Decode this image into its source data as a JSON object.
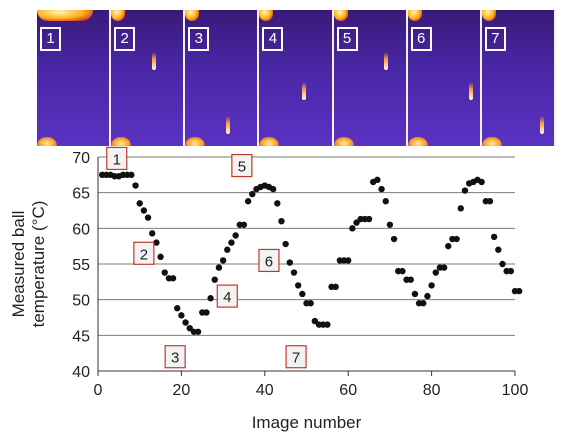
{
  "frames": [
    {
      "label": "1",
      "ball": "none"
    },
    {
      "label": "2",
      "ball": "upper"
    },
    {
      "label": "3",
      "ball": "lower"
    },
    {
      "label": "4",
      "ball": "middle"
    },
    {
      "label": "5",
      "ball": "upper"
    },
    {
      "label": "6",
      "ball": "middle"
    },
    {
      "label": "7",
      "ball": "lower"
    }
  ],
  "chart_data": {
    "type": "scatter",
    "xlabel": "Image number",
    "ylabel": [
      "Measured ball",
      "temperature (°C)"
    ],
    "xlim": [
      0,
      100
    ],
    "ylim": [
      40,
      70
    ],
    "xticks": [
      0,
      20,
      40,
      60,
      80,
      100
    ],
    "yticks": [
      40,
      45,
      50,
      55,
      60,
      65,
      70
    ],
    "grid": "horizontal",
    "series": [
      {
        "color": "#111111",
        "points": [
          [
            1,
            67.5
          ],
          [
            2,
            67.5
          ],
          [
            3,
            67.5
          ],
          [
            4,
            67.3
          ],
          [
            5,
            67.3
          ],
          [
            6,
            67.5
          ],
          [
            7,
            67.5
          ],
          [
            8,
            67.5
          ],
          [
            9,
            66
          ],
          [
            10,
            63.5
          ],
          [
            11,
            62.5
          ],
          [
            12,
            61.5
          ],
          [
            13,
            59.3
          ],
          [
            14,
            58
          ],
          [
            15,
            56
          ],
          [
            16,
            53.8
          ],
          [
            17,
            53
          ],
          [
            18,
            53
          ],
          [
            19,
            48.8
          ],
          [
            20,
            47.8
          ],
          [
            21,
            46.8
          ],
          [
            22,
            46
          ],
          [
            23,
            45.5
          ],
          [
            24,
            45.5
          ],
          [
            25,
            48.2
          ],
          [
            26,
            48.2
          ],
          [
            27,
            50.2
          ],
          [
            28,
            52.8
          ],
          [
            29,
            54.5
          ],
          [
            30,
            55.5
          ],
          [
            31,
            57
          ],
          [
            32,
            58
          ],
          [
            33,
            59
          ],
          [
            34,
            60.5
          ],
          [
            35,
            60.5
          ],
          [
            36,
            63.8
          ],
          [
            37,
            64.8
          ],
          [
            38,
            65.5
          ],
          [
            39,
            65.8
          ],
          [
            40,
            66
          ],
          [
            41,
            65.8
          ],
          [
            42,
            65.5
          ],
          [
            43,
            63.5
          ],
          [
            44,
            61
          ],
          [
            45,
            57.8
          ],
          [
            46,
            55.2
          ],
          [
            47,
            53.8
          ],
          [
            48,
            52
          ],
          [
            49,
            50.8
          ],
          [
            50,
            49.5
          ],
          [
            51,
            49.5
          ],
          [
            52,
            47
          ],
          [
            53,
            46.5
          ],
          [
            54,
            46.5
          ],
          [
            55,
            46.5
          ],
          [
            56,
            51.8
          ],
          [
            57,
            51.8
          ],
          [
            58,
            55.5
          ],
          [
            59,
            55.5
          ],
          [
            60,
            55.5
          ],
          [
            61,
            60
          ],
          [
            62,
            60.8
          ],
          [
            63,
            61.3
          ],
          [
            64,
            61.3
          ],
          [
            65,
            61.3
          ],
          [
            66,
            66.5
          ],
          [
            67,
            66.8
          ],
          [
            68,
            65.5
          ],
          [
            69,
            63.8
          ],
          [
            70,
            60.5
          ],
          [
            71,
            58.5
          ],
          [
            72,
            54
          ],
          [
            73,
            54
          ],
          [
            74,
            52.8
          ],
          [
            75,
            52.8
          ],
          [
            76,
            50.8
          ],
          [
            77,
            49.5
          ],
          [
            78,
            49.5
          ],
          [
            79,
            50.5
          ],
          [
            80,
            52
          ],
          [
            81,
            53.8
          ],
          [
            82,
            54.5
          ],
          [
            83,
            54.5
          ],
          [
            84,
            57.5
          ],
          [
            85,
            58.5
          ],
          [
            86,
            58.5
          ],
          [
            87,
            62.8
          ],
          [
            88,
            65.3
          ],
          [
            89,
            66.3
          ],
          [
            90,
            66.5
          ],
          [
            91,
            66.8
          ],
          [
            92,
            66.5
          ],
          [
            93,
            63.8
          ],
          [
            94,
            63.8
          ],
          [
            95,
            58.8
          ],
          [
            96,
            57
          ],
          [
            97,
            55
          ],
          [
            98,
            54
          ],
          [
            99,
            54
          ],
          [
            100,
            51.2
          ],
          [
            101,
            51.2
          ]
        ]
      }
    ],
    "annotations": [
      {
        "text": "1",
        "x": 4.5,
        "y": 69.8
      },
      {
        "text": "2",
        "x": 11,
        "y": 56.5
      },
      {
        "text": "3",
        "x": 18.5,
        "y": 42
      },
      {
        "text": "4",
        "x": 31,
        "y": 50.5
      },
      {
        "text": "5",
        "x": 34.5,
        "y": 68.8
      },
      {
        "text": "6",
        "x": 41,
        "y": 55.5
      },
      {
        "text": "7",
        "x": 47.5,
        "y": 42
      }
    ]
  }
}
